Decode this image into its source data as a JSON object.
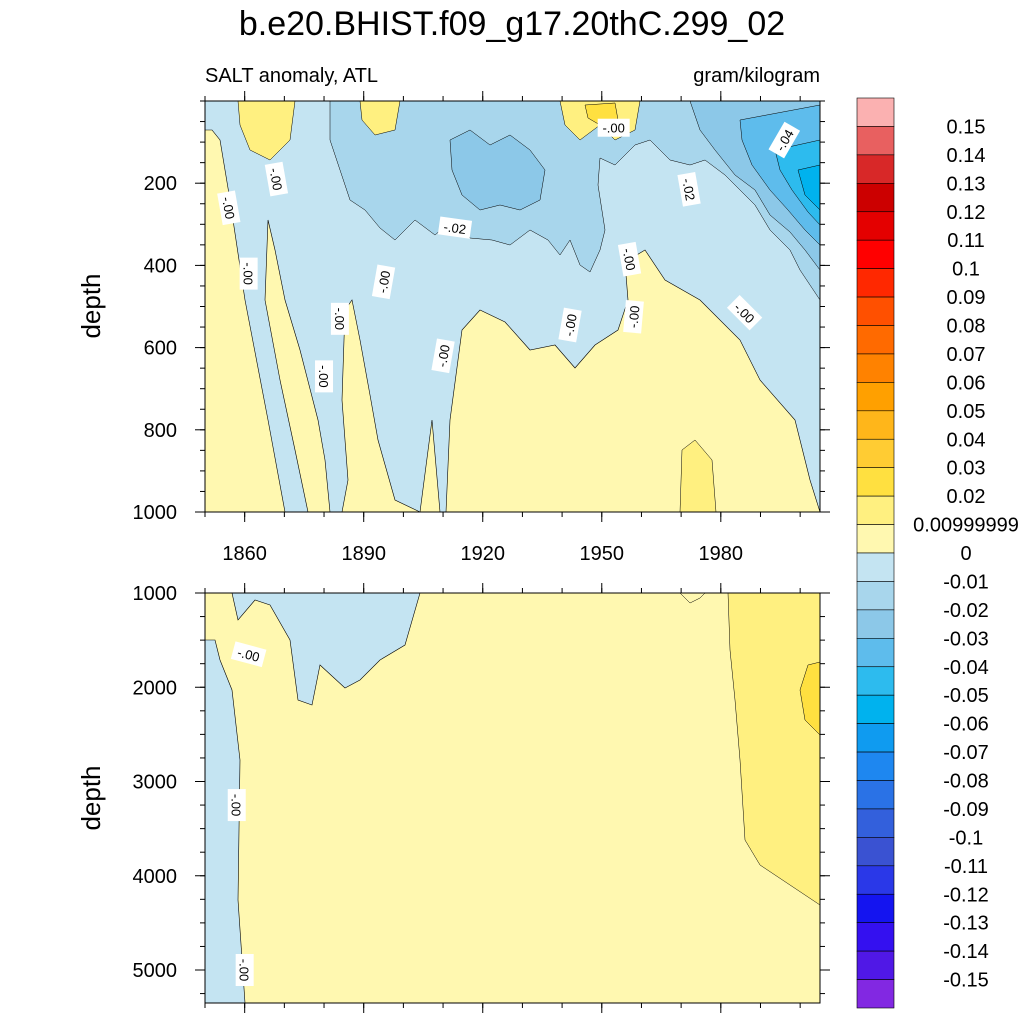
{
  "chart_data": {
    "type": "heatmap",
    "title": "b.e20.BHIST.f09_g17.20thC.299_02",
    "variable_label": "SALT anomaly, ATL",
    "units": "gram/kilogram",
    "x_ticks": [
      "1860",
      "1890",
      "1920",
      "1950",
      "1980"
    ],
    "x_range": [
      1850,
      2005
    ],
    "upper_panel": {
      "ylabel": "depth",
      "ylim": [
        0,
        1000
      ],
      "y_ticks": [
        "200",
        "400",
        "600",
        "800",
        "1000"
      ],
      "contour_labels": [
        {
          "text": "-.00",
          "x": 1856,
          "y": 260,
          "rot": 80
        },
        {
          "text": "-.00",
          "x": 1868,
          "y": 190,
          "rot": 80
        },
        {
          "text": "-.00",
          "x": 1861,
          "y": 420,
          "rot": 90
        },
        {
          "text": "-.00",
          "x": 1880,
          "y": 670,
          "rot": 90
        },
        {
          "text": "-.00",
          "x": 1884,
          "y": 530,
          "rot": 90
        },
        {
          "text": "-.00",
          "x": 1895,
          "y": 440,
          "rot": -80
        },
        {
          "text": "-.02",
          "x": 1913,
          "y": 308,
          "rot": 8
        },
        {
          "text": "-.00",
          "x": 1910,
          "y": 620,
          "rot": -80
        },
        {
          "text": "-.00",
          "x": 1942,
          "y": 545,
          "rot": -80
        },
        {
          "text": "-.00",
          "x": 1953,
          "y": 65,
          "rot": 0
        },
        {
          "text": "-.00",
          "x": 1957,
          "y": 385,
          "rot": 80
        },
        {
          "text": "-.00",
          "x": 1958,
          "y": 525,
          "rot": -85
        },
        {
          "text": "-.02",
          "x": 1972,
          "y": 215,
          "rot": 80
        },
        {
          "text": "-.00",
          "x": 1986,
          "y": 515,
          "rot": 45
        },
        {
          "text": "-.04",
          "x": 1996,
          "y": 95,
          "rot": -60
        }
      ]
    },
    "lower_panel": {
      "ylabel": "depth",
      "ylim": [
        1000,
        5350
      ],
      "y_ticks": [
        "1000",
        "2000",
        "3000",
        "4000",
        "5000"
      ],
      "contour_labels": [
        {
          "text": "-.00",
          "x": 1861,
          "y": 1650,
          "rot": 15
        },
        {
          "text": "-.00",
          "x": 1858,
          "y": 3250,
          "rot": 90
        },
        {
          "text": "-.00",
          "x": 1860,
          "y": 5000,
          "rot": 90
        }
      ]
    },
    "colorbar": {
      "levels": [
        "0.15",
        "0.14",
        "0.13",
        "0.12",
        "0.11",
        "0.1",
        "0.09",
        "0.08",
        "0.07",
        "0.06",
        "0.05",
        "0.04",
        "0.03",
        "0.02",
        "0.00999999",
        "0",
        "-0.01",
        "-0.02",
        "-0.03",
        "-0.04",
        "-0.05",
        "-0.06",
        "-0.07",
        "-0.08",
        "-0.09",
        "-0.1",
        "-0.11",
        "-0.12",
        "-0.13",
        "-0.14",
        "-0.15"
      ],
      "colors": [
        "#FBB1B1",
        "#E86060",
        "#D82828",
        "#CC0000",
        "#E40000",
        "#FF0000",
        "#FF2800",
        "#FF5000",
        "#FF6A00",
        "#FF8200",
        "#FFA000",
        "#FFB61A",
        "#FFCC33",
        "#FFE040",
        "#FFF080",
        "#FFF8B0",
        "#C4E4F2",
        "#A8D6EC",
        "#8CC8E8",
        "#5EBCEC",
        "#2DBBEE",
        "#00B2EE",
        "#0F9BF0",
        "#1E87F0",
        "#2A72E6",
        "#3360DC",
        "#3A52D2",
        "#2A38E8",
        "#1414F0",
        "#3410F0",
        "#5018E6",
        "#8228E2"
      ],
      "color_meaning": "top swatch = above 0.15, bottom swatch = below -0.15"
    }
  }
}
